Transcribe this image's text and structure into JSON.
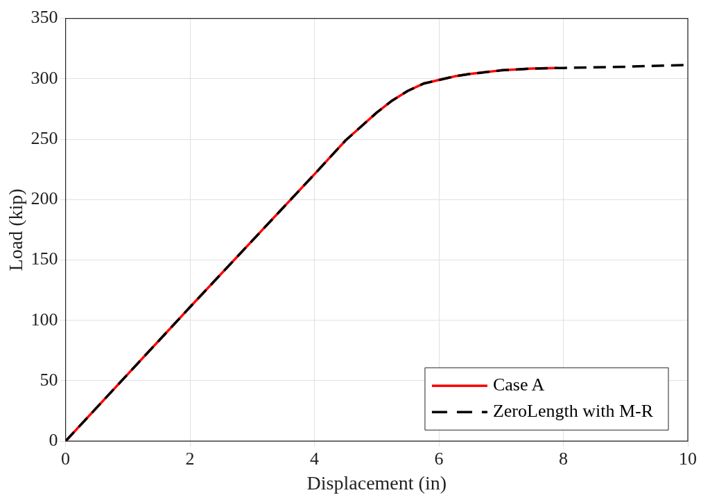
{
  "chart_data": {
    "type": "line",
    "xlabel": "Displacement (in)",
    "ylabel": "Load (kip)",
    "xlim": [
      0,
      10
    ],
    "xticks": [
      0,
      2,
      4,
      6,
      8,
      10
    ],
    "ylim": [
      0,
      350
    ],
    "yticks": [
      0,
      50,
      100,
      150,
      200,
      250,
      300,
      350
    ],
    "grid": true,
    "legend": "bottom right",
    "marker": "none",
    "series": [
      {
        "name": "Case A",
        "color": "#ff0000",
        "line_style": "solid",
        "x": [
          0,
          1,
          2,
          3,
          4,
          4.5,
          5,
          5.25,
          5.5,
          5.75,
          6,
          6.25,
          6.5,
          7,
          7.5,
          7.9
        ],
        "values": [
          0,
          55.5,
          111,
          166,
          221,
          249,
          272,
          282,
          290,
          296,
          299,
          302,
          304,
          307,
          308.5,
          309
        ]
      },
      {
        "name": "ZeroLength with M-R",
        "color": "#000000",
        "line_style": "dashed",
        "x": [
          0,
          1,
          2,
          3,
          4,
          4.5,
          5,
          5.25,
          5.5,
          5.75,
          6,
          6.25,
          6.5,
          7,
          7.5,
          8,
          9,
          10
        ],
        "values": [
          0,
          55.5,
          111,
          166,
          221,
          249,
          272,
          282,
          290,
          296,
          299,
          302,
          304,
          307,
          308.5,
          309,
          310,
          311.5
        ]
      }
    ]
  }
}
